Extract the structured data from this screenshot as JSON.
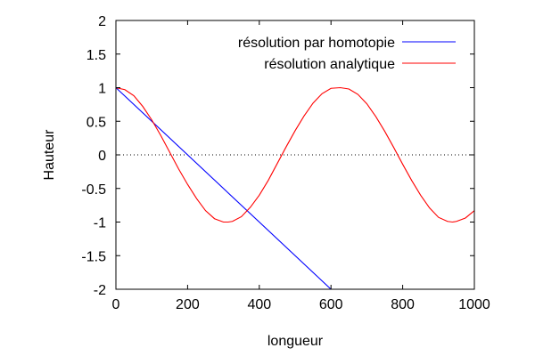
{
  "chart_data": {
    "type": "line",
    "title": "",
    "xlabel": "longueur",
    "ylabel": "Hauteur",
    "xlim": [
      0,
      1000
    ],
    "ylim": [
      -2,
      2
    ],
    "xticks": [
      0,
      200,
      400,
      600,
      800,
      1000
    ],
    "yticks": [
      -2,
      -1.5,
      -1,
      -0.5,
      0,
      0.5,
      1,
      1.5,
      2
    ],
    "grid": false,
    "legend_position": "top-right",
    "zero_line": true,
    "series": [
      {
        "name": "résolution par homotopie",
        "color": "#0000ff",
        "x": [
          0,
          600
        ],
        "y": [
          1,
          -2
        ]
      },
      {
        "name": "résolution analytique",
        "color": "#ff0000",
        "x": [
          0,
          25,
          50,
          75,
          100,
          125,
          150,
          175,
          200,
          225,
          250,
          275,
          300,
          313,
          325,
          350,
          375,
          400,
          425,
          450,
          475,
          500,
          525,
          550,
          575,
          600,
          626,
          650,
          675,
          700,
          725,
          750,
          775,
          800,
          825,
          850,
          875,
          900,
          925,
          939,
          950,
          975,
          1000
        ],
        "y": [
          1.0,
          0.97,
          0.88,
          0.72,
          0.52,
          0.29,
          0.04,
          -0.21,
          -0.44,
          -0.65,
          -0.83,
          -0.95,
          -1.0,
          -1.0,
          -0.99,
          -0.92,
          -0.78,
          -0.6,
          -0.38,
          -0.13,
          0.12,
          0.36,
          0.58,
          0.77,
          0.91,
          0.99,
          1.0,
          0.98,
          0.9,
          0.76,
          0.57,
          0.35,
          0.11,
          -0.14,
          -0.38,
          -0.6,
          -0.79,
          -0.93,
          -0.99,
          -1.0,
          -0.99,
          -0.94,
          -0.83
        ]
      }
    ]
  }
}
